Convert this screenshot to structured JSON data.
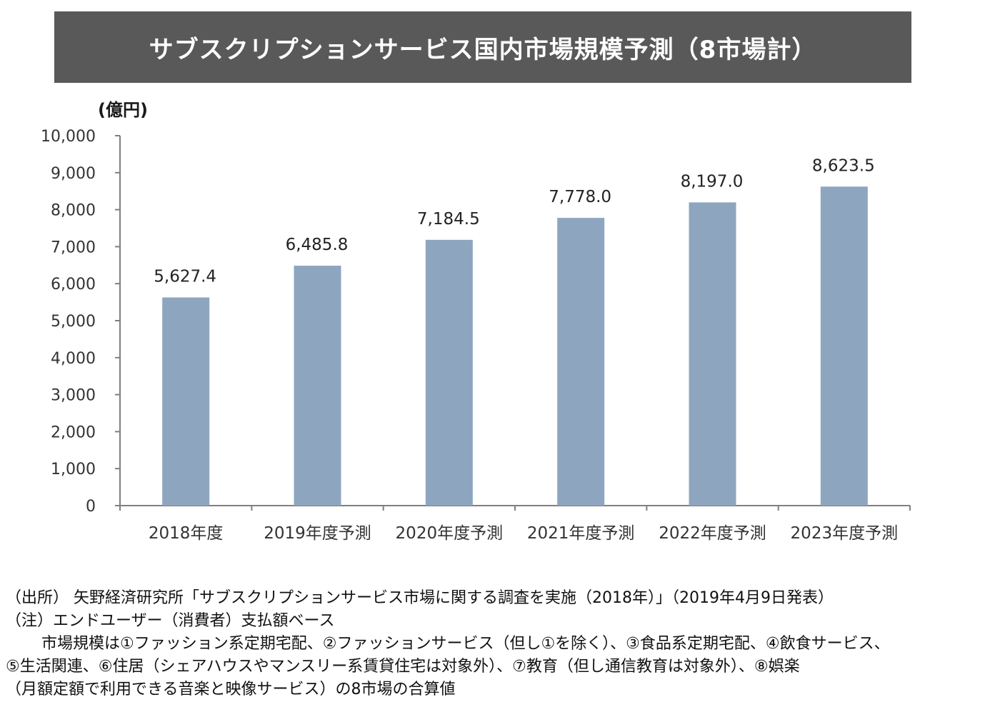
{
  "title": "サブスクリプションサービス国内市場規模予測（8市場計）",
  "colors": {
    "banner": "#595959",
    "bar": "#8EA5BF",
    "axis": "#7f7f7f"
  },
  "chart_data": {
    "type": "bar",
    "title": "サブスクリプションサービス国内市場規模予測（8市場計）",
    "unit_label": "(億円)",
    "categories": [
      "2018年度",
      "2019年度予測",
      "2020年度予測",
      "2021年度予測",
      "2022年度予測",
      "2023年度予測"
    ],
    "values": [
      5627.4,
      6485.8,
      7184.5,
      7778.0,
      8197.0,
      8623.5
    ],
    "value_labels": [
      "5,627.4",
      "6,485.8",
      "7,184.5",
      "7,778.0",
      "8,197.0",
      "8,623.5"
    ],
    "ylim": [
      0,
      10000
    ],
    "yticks": [
      0,
      1000,
      2000,
      3000,
      4000,
      5000,
      6000,
      7000,
      8000,
      9000,
      10000
    ],
    "ytick_labels": [
      "0",
      "1,000",
      "2,000",
      "3,000",
      "4,000",
      "5,000",
      "6,000",
      "7,000",
      "8,000",
      "9,000",
      "10,000"
    ],
    "grid": false
  },
  "notes": {
    "source": "（出所） 矢野経済研究所「サブスクリプションサービス市場に関する調査を実施（2018年）」（2019年4月9日発表）",
    "note": "（注）エンドユーザー（消費者）支払額ベース",
    "detail1": "市場規模は①ファッション系定期宅配、②ファッションサービス（但し①を除く）、③食品系定期宅配、④飲食サービス、",
    "detail2": "⑤生活関連、⑥住居（シェアハウスやマンスリー系賃貸住宅は対象外）、⑦教育（但し通信教育は対象外）、⑧娯楽",
    "detail3": "（月額定額で利用できる音楽と映像サービス）の8市場の合算値"
  }
}
